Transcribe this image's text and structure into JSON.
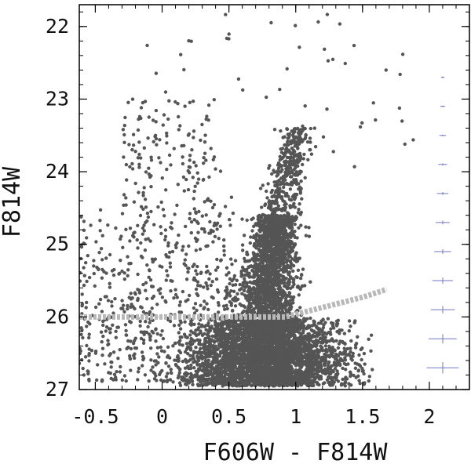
{
  "chart_data": {
    "type": "scatter",
    "title": "",
    "xlabel": "F606W - F814W",
    "ylabel": "F814W",
    "xlim": [
      -0.62,
      2.3
    ],
    "ylim": [
      27.0,
      21.7
    ],
    "y_inverted": true,
    "x_ticks": [
      -0.5,
      0,
      0.5,
      1,
      1.5,
      2
    ],
    "x_tick_labels": [
      "-0.5",
      "0",
      "0.5",
      "1",
      "1.5",
      "2"
    ],
    "y_ticks": [
      22,
      23,
      24,
      25,
      26,
      27
    ],
    "y_tick_labels": [
      "22",
      "23",
      "24",
      "25",
      "26",
      "27"
    ],
    "grid": false,
    "colors": {
      "points": "#555555",
      "completeness_line": "#b8b8b8",
      "error_bars": "#6f76c4",
      "frame": "#000000"
    },
    "completeness_limit": {
      "x": [
        -0.62,
        0.0,
        0.5,
        0.92,
        1.2,
        1.5,
        1.68
      ],
      "y": [
        26.0,
        26.0,
        26.0,
        26.0,
        25.87,
        25.73,
        25.62
      ]
    },
    "error_bars": [
      {
        "color": 2.1,
        "mag": 22.7,
        "xerr": 0.012,
        "yerr": 0.005
      },
      {
        "color": 2.1,
        "mag": 23.1,
        "xerr": 0.018,
        "yerr": 0.008
      },
      {
        "color": 2.1,
        "mag": 23.5,
        "xerr": 0.025,
        "yerr": 0.011
      },
      {
        "color": 2.1,
        "mag": 23.9,
        "xerr": 0.033,
        "yerr": 0.015
      },
      {
        "color": 2.1,
        "mag": 24.3,
        "xerr": 0.042,
        "yerr": 0.02
      },
      {
        "color": 2.1,
        "mag": 24.7,
        "xerr": 0.052,
        "yerr": 0.026
      },
      {
        "color": 2.1,
        "mag": 25.1,
        "xerr": 0.063,
        "yerr": 0.033
      },
      {
        "color": 2.1,
        "mag": 25.5,
        "xerr": 0.076,
        "yerr": 0.042
      },
      {
        "color": 2.1,
        "mag": 25.9,
        "xerr": 0.09,
        "yerr": 0.052
      },
      {
        "color": 2.1,
        "mag": 26.3,
        "xerr": 0.105,
        "yerr": 0.064
      },
      {
        "color": 2.1,
        "mag": 26.7,
        "xerr": 0.12,
        "yerr": 0.078
      }
    ],
    "point_groups": [
      {
        "name": "upper rgb",
        "n": 500,
        "color_range": [
          0.82,
          1.22
        ],
        "mag_range": [
          23.4,
          25.0
        ]
      },
      {
        "name": "lower rgb",
        "n": 1800,
        "color_range": [
          0.55,
          1.05
        ],
        "mag_range": [
          24.6,
          26.2
        ]
      },
      {
        "name": "faint",
        "n": 3600,
        "color_range": [
          0.2,
          1.45
        ],
        "mag_range": [
          26.0,
          26.95
        ]
      },
      {
        "name": "blue plume",
        "n": 650,
        "color_range": [
          -0.62,
          0.55
        ],
        "mag_range": [
          24.3,
          26.9
        ]
      },
      {
        "name": "upper blue",
        "n": 160,
        "color_range": [
          -0.3,
          0.4
        ],
        "mag_range": [
          23.0,
          25.0
        ]
      },
      {
        "name": "bright",
        "n": 60,
        "color_range": [
          -0.2,
          1.9
        ],
        "mag_range": [
          21.8,
          24.0
        ]
      }
    ]
  }
}
